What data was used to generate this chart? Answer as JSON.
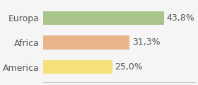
{
  "categories": [
    "America",
    "Africa",
    "Europa"
  ],
  "values": [
    25.0,
    31.3,
    43.8
  ],
  "labels": [
    "25,0%",
    "31,3%",
    "43,8%"
  ],
  "bar_colors": [
    "#f5e07a",
    "#e8b48a",
    "#a8c48a"
  ],
  "background_color": "#f5f5f5",
  "xlim": [
    0,
    55
  ],
  "bar_height": 0.55,
  "label_fontsize": 9,
  "tick_fontsize": 9,
  "text_color": "#555555"
}
